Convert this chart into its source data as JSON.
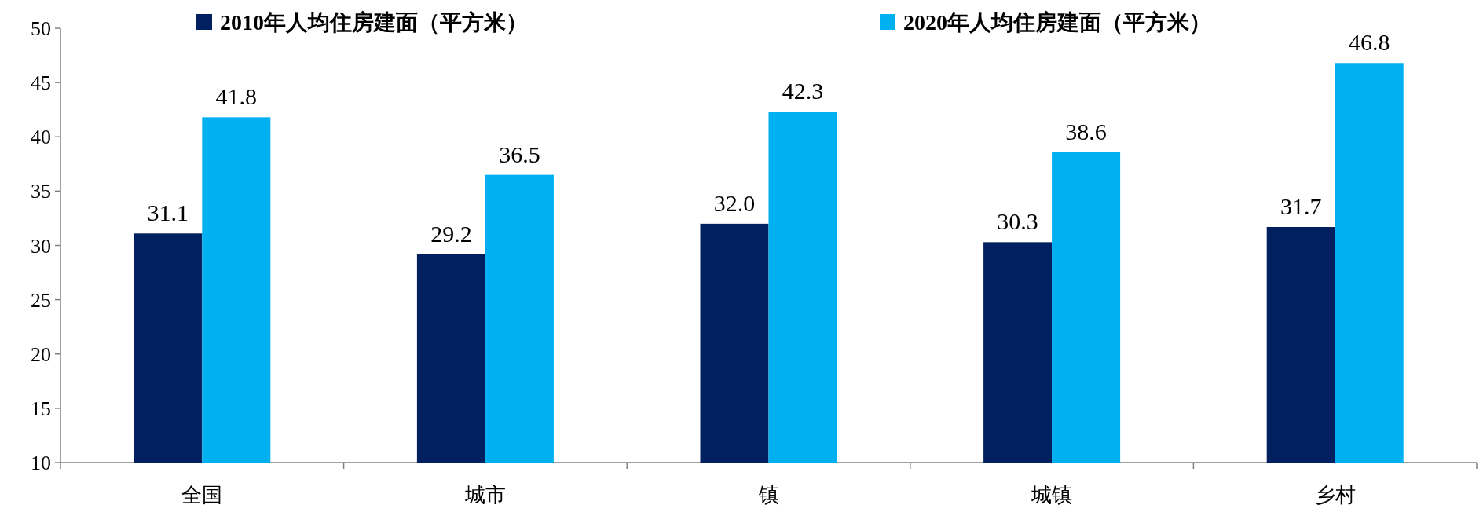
{
  "chart_data": {
    "type": "bar",
    "categories": [
      "全国",
      "城市",
      "镇",
      "城镇",
      "乡村"
    ],
    "series": [
      {
        "name": "2010年人均住房建面（平方米）",
        "color": "#002060",
        "values": [
          31.1,
          29.2,
          32.0,
          30.3,
          31.7
        ],
        "value_labels": [
          "31.1",
          "29.2",
          "32.0",
          "30.3",
          "31.7"
        ]
      },
      {
        "name": "2020年人均住房建面（平方米）",
        "color": "#00b0f0",
        "values": [
          41.8,
          36.5,
          42.3,
          38.6,
          46.8
        ],
        "value_labels": [
          "41.8",
          "36.5",
          "42.3",
          "38.6",
          "46.8"
        ]
      }
    ],
    "ylim": [
      10,
      50
    ],
    "yticks": [
      10,
      15,
      20,
      25,
      30,
      35,
      40,
      45,
      50
    ],
    "legend": "top",
    "grid": false
  }
}
